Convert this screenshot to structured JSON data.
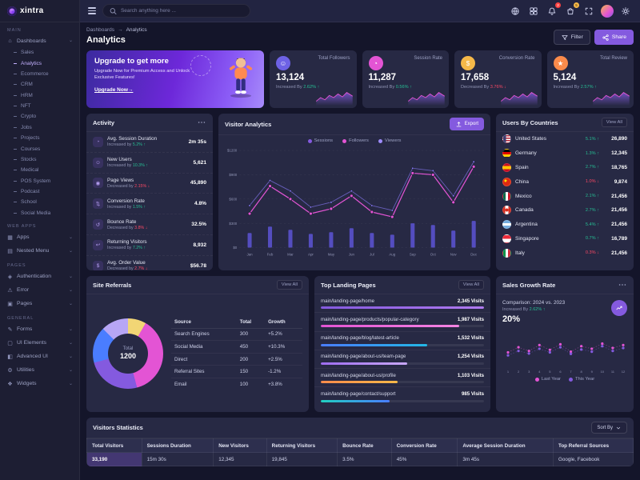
{
  "brand": {
    "name": "xintra"
  },
  "header": {
    "search_placeholder": "Search anything here ...",
    "icons": [
      "translate",
      "grid",
      "bell",
      "bag",
      "fullscreen",
      "avatar",
      "gear"
    ],
    "badges": {
      "bell": "2",
      "bag": "5"
    }
  },
  "sidebar": {
    "active": "Analytics",
    "sections": [
      {
        "label": "MAIN",
        "items": [
          {
            "label": "Dashboards",
            "icon": "dashboards",
            "children": [
              "Sales",
              "Analytics",
              "Ecommerce",
              "CRM",
              "HRM",
              "NFT",
              "Crypto",
              "Jobs",
              "Projects",
              "Courses",
              "Stocks",
              "Medical",
              "POS System",
              "Podcast",
              "School",
              "Social Media"
            ]
          }
        ]
      },
      {
        "label": "WEB APPS",
        "items": [
          {
            "label": "Apps",
            "icon": "apps"
          },
          {
            "label": "Nested Menu",
            "icon": "nested"
          }
        ]
      },
      {
        "label": "PAGES",
        "items": [
          {
            "label": "Authentication",
            "icon": "auth"
          },
          {
            "label": "Error",
            "icon": "error"
          },
          {
            "label": "Pages",
            "icon": "pages"
          }
        ]
      },
      {
        "label": "GENERAL",
        "items": [
          {
            "label": "Forms",
            "icon": "forms"
          },
          {
            "label": "UI Elements",
            "icon": "ui"
          },
          {
            "label": "Advanced UI",
            "icon": "advui"
          },
          {
            "label": "Utilities",
            "icon": "utils"
          },
          {
            "label": "Widgets",
            "icon": "widgets"
          }
        ]
      }
    ]
  },
  "breadcrumb": {
    "items": [
      "Dashboards",
      "Analytics"
    ],
    "separator": "→"
  },
  "page": {
    "title": "Analytics"
  },
  "actions": {
    "filter": "Filter",
    "share": "Share"
  },
  "upgrade": {
    "title": "Upgrade to get more",
    "description": "Upgrade Now for Premium Access and Unlock Exclusive Features!",
    "cta": "Upgrade Now→"
  },
  "stats": [
    {
      "label": "Total Followers",
      "value": "13,124",
      "change_label": "Increased By",
      "change": "2.62%",
      "direction": "up",
      "icon": "users",
      "color": "#6e62e5"
    },
    {
      "label": "Session Rate",
      "value": "11,287",
      "change_label": "Increased By",
      "change": "0.56%",
      "direction": "up",
      "icon": "session",
      "color": "#e354d4"
    },
    {
      "label": "Conversion Rate",
      "value": "17,658",
      "change_label": "Decreased By",
      "change": "3.76%",
      "direction": "down",
      "icon": "dollar",
      "color": "#f5b849"
    },
    {
      "label": "Total Review",
      "value": "5,124",
      "change_label": "Increased By",
      "change": "2.57%",
      "direction": "up",
      "icon": "star",
      "color": "#fb8b4b"
    }
  ],
  "activity": {
    "title": "Activity",
    "items": [
      {
        "title": "Avg. Session Duration",
        "change_label": "Increased by",
        "change": "5.2%",
        "direction": "up",
        "value": "2m 35s",
        "icon": "clock"
      },
      {
        "title": "New Users",
        "change_label": "Increased by",
        "change": "10.3%",
        "direction": "up",
        "value": "5,621",
        "icon": "users"
      },
      {
        "title": "Page Views",
        "change_label": "Decreased by",
        "change": "2.15%",
        "direction": "down",
        "value": "45,890",
        "icon": "eye"
      },
      {
        "title": "Conversion Rate",
        "change_label": "Increased by",
        "change": "1.5%",
        "direction": "up",
        "value": "4.8%",
        "icon": "swap"
      },
      {
        "title": "Bounce Rate",
        "change_label": "Decreased by",
        "change": "3.8%",
        "direction": "down",
        "value": "32.5%",
        "icon": "bounce"
      },
      {
        "title": "Returning Visitors",
        "change_label": "Increased by",
        "change": "7.2%",
        "direction": "up",
        "value": "8,932",
        "icon": "return"
      },
      {
        "title": "Avg. Order Value",
        "change_label": "Decreased by",
        "change": "2.7%",
        "direction": "down",
        "value": "$56.78",
        "icon": "dollar"
      }
    ]
  },
  "visitor_analytics": {
    "title": "Visitor Analytics",
    "export_label": "Export",
    "legend": [
      {
        "name": "Sessions",
        "color": "#845adf"
      },
      {
        "name": "Followers",
        "color": "#e354d4"
      },
      {
        "name": "Viewers",
        "color": "#9e8cfc"
      }
    ]
  },
  "users_by_countries": {
    "title": "Users By Countries",
    "view_all": "View All",
    "rows": [
      {
        "country": "United States",
        "flag": "us",
        "change": "5.1%",
        "direction": "up",
        "value": "26,890"
      },
      {
        "country": "Germany",
        "flag": "de",
        "change": "1.3%",
        "direction": "up",
        "value": "12,345"
      },
      {
        "country": "Spain",
        "flag": "es",
        "change": "2.7%",
        "direction": "up",
        "value": "18,765"
      },
      {
        "country": "China",
        "flag": "cn",
        "change": "1.0%",
        "direction": "down",
        "value": "9,874"
      },
      {
        "country": "Mexico",
        "flag": "mx",
        "change": "2.1%",
        "direction": "up",
        "value": "21,456"
      },
      {
        "country": "Canada",
        "flag": "ca",
        "change": "2.7%",
        "direction": "up",
        "value": "21,456"
      },
      {
        "country": "Argentina",
        "flag": "ar",
        "change": "5.4%",
        "direction": "up",
        "value": "21,456"
      },
      {
        "country": "Singapore",
        "flag": "sg",
        "change": "0.7%",
        "direction": "up",
        "value": "16,789"
      },
      {
        "country": "Italy",
        "flag": "it",
        "change": "0.3%",
        "direction": "down",
        "value": "21,456"
      }
    ]
  },
  "site_referrals": {
    "title": "Site Referrals",
    "view_all": "View All",
    "center_label": "Total",
    "center_value": "1200",
    "columns": [
      "Source",
      "Total",
      "Growth"
    ],
    "rows": [
      {
        "source": "Search Engines",
        "total": "300",
        "growth": "+5.2%",
        "direction": "up"
      },
      {
        "source": "Social Media",
        "total": "450",
        "growth": "+10.3%",
        "direction": "up"
      },
      {
        "source": "Direct",
        "total": "200",
        "growth": "+2.5%",
        "direction": "up"
      },
      {
        "source": "Referral Sites",
        "total": "150",
        "growth": "-1.2%",
        "direction": "down"
      },
      {
        "source": "Email",
        "total": "100",
        "growth": "+3.8%",
        "direction": "up"
      }
    ]
  },
  "landing_pages": {
    "title": "Top Landing Pages",
    "view_all": "View All",
    "max_visits": 2345,
    "rows": [
      {
        "page": "main/landing-page/home",
        "visits": "2,345 Visits",
        "value": 2345,
        "colors": [
          "#845adf",
          "#b07af0"
        ]
      },
      {
        "page": "main/landing-page/products/popular-category",
        "visits": "1,987 Visits",
        "value": 1987,
        "colors": [
          "#e354d4",
          "#f585e3"
        ]
      },
      {
        "page": "main/landing-page/blog/latest-article",
        "visits": "1,532 Visits",
        "value": 1532,
        "colors": [
          "#4a7dff",
          "#23b7e5"
        ]
      },
      {
        "page": "main/landing-page/about-us/team-page",
        "visits": "1,254 Visits",
        "value": 1254,
        "colors": [
          "#9e6df0",
          "#c9a8fa"
        ]
      },
      {
        "page": "main/landing-page/about-us/profile",
        "visits": "1,103 Visits",
        "value": 1103,
        "colors": [
          "#fb8b4b",
          "#f5b849"
        ]
      },
      {
        "page": "main/landing-page/contact/support",
        "visits": "985 Visits",
        "value": 985,
        "colors": [
          "#21cfc0",
          "#4a7dff"
        ]
      }
    ]
  },
  "sales_growth": {
    "title": "Sales Growth Rate",
    "comparison": "Comparison: 2024 vs. 2023",
    "change_label": "Increased By",
    "change": "2.62%",
    "direction": "up",
    "value": "20%",
    "legend": [
      {
        "name": "Last Year",
        "color": "#e354d4"
      },
      {
        "name": "This Year",
        "color": "#845adf"
      }
    ]
  },
  "visitors_statistics": {
    "title": "Visitors Statistics",
    "sort_label": "Sort By",
    "columns": [
      "Total Visitors",
      "Sessions Duration",
      "New Visitors",
      "Returning Visitors",
      "Bounce Rate",
      "Conversion Rate",
      "Average Session Duration",
      "Top Referral Sources"
    ],
    "rows": [
      [
        "33,190",
        "15m 30s",
        "12,345",
        "19,845",
        "3.5%",
        "45%",
        "3m 45s",
        "Google, Facebook"
      ]
    ]
  },
  "chart_data": [
    {
      "name": "visitor_analytics",
      "type": "line",
      "title": "Visitor Analytics",
      "x": [
        "Jan",
        "Feb",
        "Mar",
        "Apr",
        "May",
        "Jun",
        "Jul",
        "Aug",
        "Sep",
        "Oct",
        "Nov",
        "Dec"
      ],
      "ylim": [
        0,
        1200
      ],
      "yticks": [
        0,
        300,
        600,
        900,
        1200
      ],
      "ytick_labels": [
        "$0",
        "$300",
        "$600",
        "$900",
        "$1200"
      ],
      "grid": true,
      "legend_position": "top",
      "series": [
        {
          "name": "Sessions",
          "type": "line",
          "color": "#8a7bfa",
          "values": [
            520,
            830,
            700,
            500,
            560,
            700,
            520,
            460,
            980,
            950,
            640,
            1060
          ]
        },
        {
          "name": "Followers",
          "type": "line",
          "color": "#e354d4",
          "values": [
            420,
            760,
            600,
            420,
            480,
            640,
            440,
            380,
            920,
            900,
            560,
            1000
          ]
        },
        {
          "name": "Viewers",
          "type": "bar",
          "color": "#6459e8",
          "values": [
            180,
            260,
            220,
            170,
            190,
            240,
            180,
            160,
            300,
            280,
            210,
            330
          ]
        }
      ]
    },
    {
      "name": "site_referrals",
      "type": "pie",
      "title": "Site Referrals",
      "labels": [
        "Search Engines",
        "Social Media",
        "Direct",
        "Referral Sites",
        "Email"
      ],
      "values": [
        300,
        450,
        200,
        150,
        100
      ],
      "colors": [
        "#845adf",
        "#e354d4",
        "#4a7dff",
        "#b7a6f5",
        "#f2d675"
      ],
      "total": 1200
    },
    {
      "name": "sales_growth",
      "type": "scatter",
      "title": "Sales Growth Rate",
      "x": [
        1,
        2,
        3,
        4,
        5,
        6,
        7,
        8,
        9,
        10,
        11,
        12
      ],
      "ylim": [
        0,
        100
      ],
      "series": [
        {
          "name": "Last Year",
          "color": "#e354d4",
          "values": [
            38,
            52,
            42,
            58,
            45,
            60,
            40,
            55,
            48,
            62,
            50,
            58
          ]
        },
        {
          "name": "This Year",
          "color": "#845adf",
          "values": [
            30,
            42,
            35,
            48,
            38,
            52,
            34,
            46,
            40,
            55,
            42,
            50
          ]
        }
      ]
    }
  ]
}
